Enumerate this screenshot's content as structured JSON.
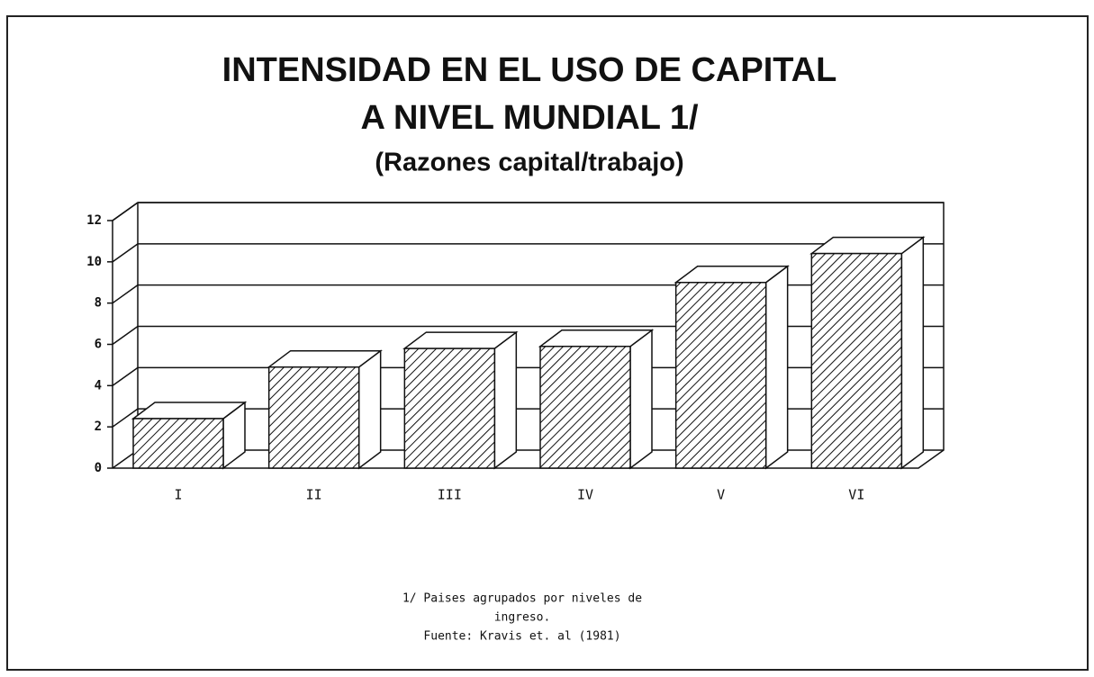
{
  "chart_data": {
    "type": "bar3d",
    "title_lines": [
      "INTENSIDAD EN EL USO DE CAPITAL",
      "A NIVEL MUNDIAL  1/"
    ],
    "subtitle": "(Razones capital/trabajo)",
    "categories": [
      "I",
      "II",
      "III",
      "IV",
      "V",
      "VI"
    ],
    "values": [
      2.4,
      4.9,
      5.8,
      5.9,
      9.0,
      10.4
    ],
    "ylim": [
      0,
      12
    ],
    "yticks": [
      0,
      2,
      4,
      6,
      8,
      10,
      12
    ],
    "grid": true,
    "footnote_lines": [
      "1/  Paises agrupados por niveles de",
      "ingreso.",
      "Fuente:   Kravis et. al (1981)"
    ]
  }
}
